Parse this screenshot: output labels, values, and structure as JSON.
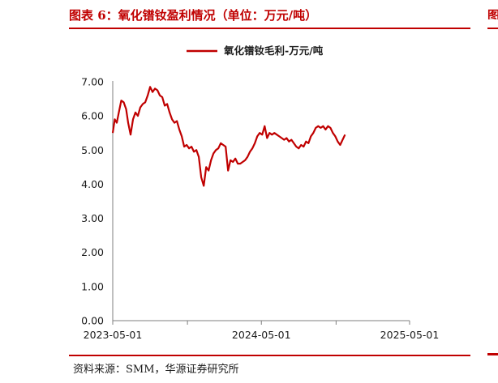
{
  "header": {
    "title": "图表 6：氧化镨钕盈利情况（单位：万元/吨）",
    "edge_fragment": "图"
  },
  "footer": {
    "source": "资料来源：SMM，华源证券研究所"
  },
  "chart_data": {
    "type": "line",
    "title": "",
    "xlabel": "",
    "ylabel": "",
    "ylim": [
      0,
      7
    ],
    "yticks": [
      "7.00",
      "6.00",
      "5.00",
      "4.00",
      "3.00",
      "2.00",
      "1.00",
      "0.00"
    ],
    "xticks": [
      "2023-05-01",
      "2024-05-01",
      "2025-05-01"
    ],
    "legend_position": "top-center",
    "color": "#c00000",
    "series": [
      {
        "name": "氧化镨钕毛利-万元/吨",
        "points": [
          [
            "2023-05-01",
            5.5
          ],
          [
            "2023-05-06",
            5.9
          ],
          [
            "2023-05-11",
            5.8
          ],
          [
            "2023-05-16",
            6.1
          ],
          [
            "2023-05-22",
            6.45
          ],
          [
            "2023-05-28",
            6.4
          ],
          [
            "2023-06-03",
            6.2
          ],
          [
            "2023-06-08",
            5.8
          ],
          [
            "2023-06-14",
            5.45
          ],
          [
            "2023-06-20",
            5.9
          ],
          [
            "2023-06-26",
            6.1
          ],
          [
            "2023-07-02",
            6.0
          ],
          [
            "2023-07-08",
            6.25
          ],
          [
            "2023-07-14",
            6.35
          ],
          [
            "2023-07-20",
            6.4
          ],
          [
            "2023-07-26",
            6.6
          ],
          [
            "2023-08-01",
            6.85
          ],
          [
            "2023-08-07",
            6.7
          ],
          [
            "2023-08-13",
            6.8
          ],
          [
            "2023-08-19",
            6.75
          ],
          [
            "2023-08-25",
            6.6
          ],
          [
            "2023-08-31",
            6.55
          ],
          [
            "2023-09-06",
            6.3
          ],
          [
            "2023-09-12",
            6.35
          ],
          [
            "2023-09-18",
            6.1
          ],
          [
            "2023-09-24",
            5.9
          ],
          [
            "2023-09-30",
            5.8
          ],
          [
            "2023-10-06",
            5.85
          ],
          [
            "2023-10-12",
            5.6
          ],
          [
            "2023-10-18",
            5.4
          ],
          [
            "2023-10-24",
            5.1
          ],
          [
            "2023-10-30",
            5.15
          ],
          [
            "2023-11-05",
            5.05
          ],
          [
            "2023-11-11",
            5.1
          ],
          [
            "2023-11-17",
            4.95
          ],
          [
            "2023-11-23",
            5.0
          ],
          [
            "2023-11-29",
            4.8
          ],
          [
            "2023-12-05",
            4.2
          ],
          [
            "2023-12-11",
            3.95
          ],
          [
            "2023-12-17",
            4.5
          ],
          [
            "2023-12-23",
            4.4
          ],
          [
            "2023-12-29",
            4.7
          ],
          [
            "2024-01-04",
            4.9
          ],
          [
            "2024-01-10",
            5.0
          ],
          [
            "2024-01-16",
            5.05
          ],
          [
            "2024-01-22",
            5.2
          ],
          [
            "2024-01-28",
            5.15
          ],
          [
            "2024-02-03",
            5.1
          ],
          [
            "2024-02-09",
            4.4
          ],
          [
            "2024-02-15",
            4.7
          ],
          [
            "2024-02-21",
            4.65
          ],
          [
            "2024-02-27",
            4.75
          ],
          [
            "2024-03-04",
            4.6
          ],
          [
            "2024-03-10",
            4.6
          ],
          [
            "2024-03-16",
            4.65
          ],
          [
            "2024-03-22",
            4.7
          ],
          [
            "2024-03-28",
            4.8
          ],
          [
            "2024-04-03",
            4.95
          ],
          [
            "2024-04-09",
            5.05
          ],
          [
            "2024-04-15",
            5.2
          ],
          [
            "2024-04-21",
            5.4
          ],
          [
            "2024-04-27",
            5.5
          ],
          [
            "2024-05-03",
            5.45
          ],
          [
            "2024-05-09",
            5.7
          ],
          [
            "2024-05-15",
            5.35
          ],
          [
            "2024-05-21",
            5.5
          ],
          [
            "2024-05-27",
            5.45
          ],
          [
            "2024-06-02",
            5.5
          ],
          [
            "2024-06-08",
            5.45
          ],
          [
            "2024-06-14",
            5.4
          ],
          [
            "2024-06-20",
            5.35
          ],
          [
            "2024-06-26",
            5.3
          ],
          [
            "2024-07-02",
            5.35
          ],
          [
            "2024-07-08",
            5.25
          ],
          [
            "2024-07-14",
            5.3
          ],
          [
            "2024-07-20",
            5.2
          ],
          [
            "2024-07-26",
            5.1
          ],
          [
            "2024-08-01",
            5.05
          ],
          [
            "2024-08-07",
            5.15
          ],
          [
            "2024-08-13",
            5.1
          ],
          [
            "2024-08-19",
            5.25
          ],
          [
            "2024-08-25",
            5.2
          ],
          [
            "2024-08-31",
            5.4
          ],
          [
            "2024-09-06",
            5.5
          ],
          [
            "2024-09-12",
            5.65
          ],
          [
            "2024-09-18",
            5.7
          ],
          [
            "2024-09-24",
            5.65
          ],
          [
            "2024-09-30",
            5.7
          ],
          [
            "2024-10-06",
            5.6
          ],
          [
            "2024-10-12",
            5.7
          ],
          [
            "2024-10-18",
            5.65
          ],
          [
            "2024-10-24",
            5.5
          ],
          [
            "2024-10-30",
            5.4
          ],
          [
            "2024-11-05",
            5.25
          ],
          [
            "2024-11-11",
            5.15
          ],
          [
            "2024-11-17",
            5.3
          ],
          [
            "2024-11-23",
            5.45
          ]
        ]
      }
    ]
  }
}
